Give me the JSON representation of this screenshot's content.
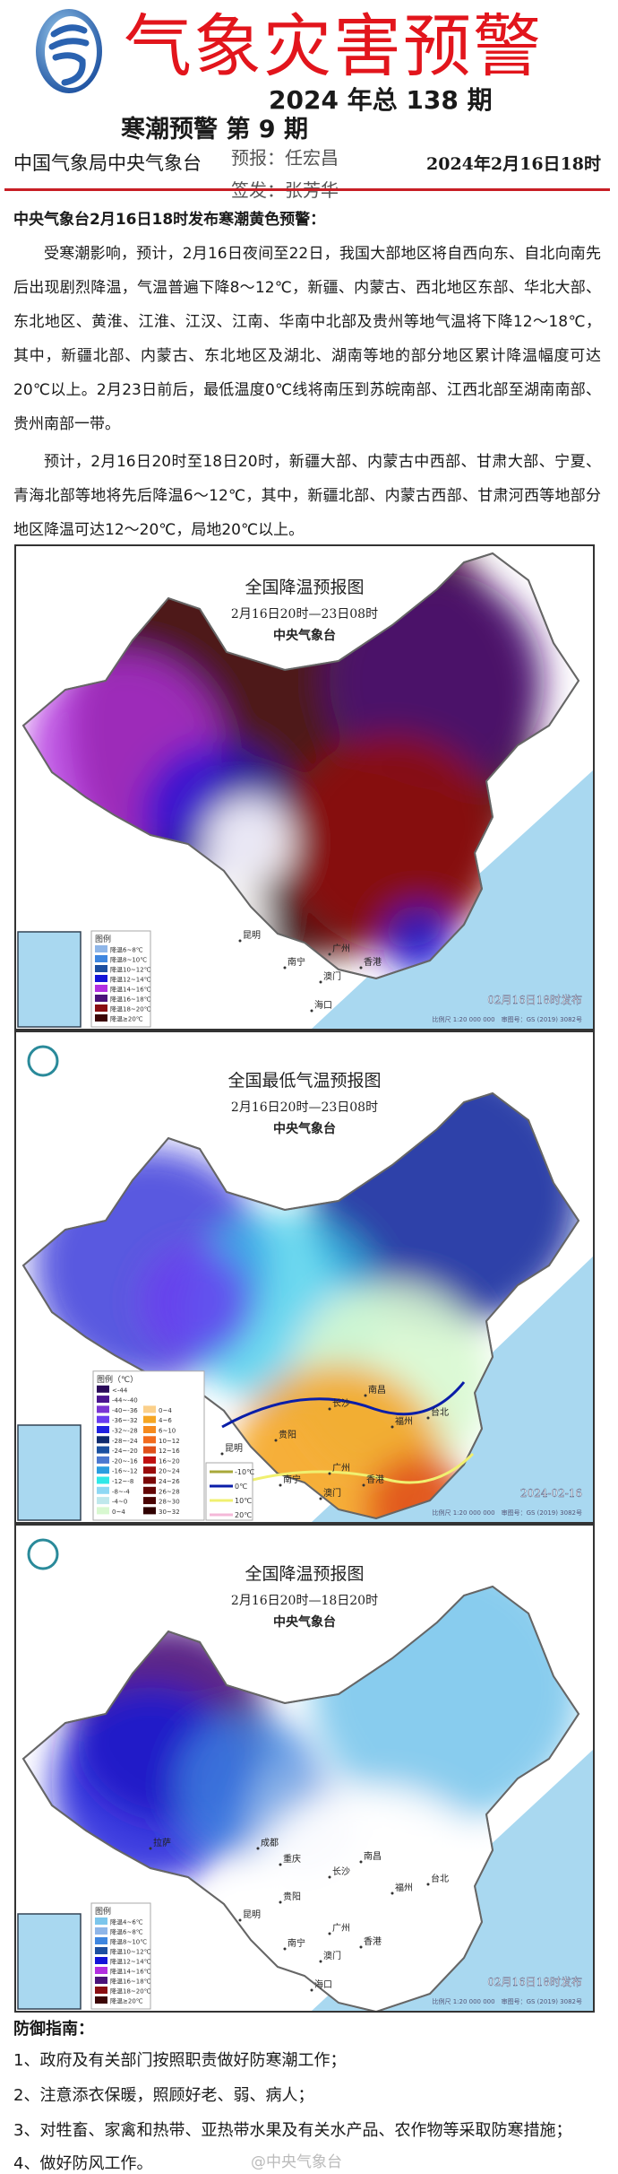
{
  "header": {
    "title": "气象灾害预警",
    "issue": "2024 年总 138 期",
    "sub_issue": "寒潮预警 第 9 期",
    "org": "中国气象局中央气象台",
    "forecaster": "预报：任宏昌",
    "issuer": "签发：张芳华",
    "date": "2024年2月16日18时",
    "accent": "#e2151c"
  },
  "body": {
    "heading": "中央气象台2月16日18时发布寒潮黄色预警：",
    "paragraphs": [
      "受寒潮影响，预计，2月16日夜间至22日，我国大部地区将自西向东、自北向南先后出现剧烈降温，气温普遍下降8～12℃，新疆、内蒙古、西北地区东部、华北大部、东北地区、黄淮、江淮、江汉、江南、华南中北部及贵州等地气温将下降12～18℃，其中，新疆北部、内蒙古、东北地区及湖北、湖南等地的部分地区累计降温幅度可达20℃以上。2月23日前后，最低温度0℃线将南压到苏皖南部、江西北部至湖南南部、贵州南部一带。",
      "预计，2月16日20时至18日20时，新疆大部、内蒙古中西部、甘肃大部、宁夏、青海北部等地将先后降温6～12℃，其中，新疆北部、内蒙古西部、甘肃河西等地部分地区降温可达12～20℃，局地20℃以上。"
    ]
  },
  "maps": [
    {
      "title": "全国降温预报图",
      "period": "2月16日20时—23日08时",
      "agency": "中央气象台",
      "legend_title": "图例",
      "legend": [
        {
          "label": "降温6~8℃",
          "color": "#8fb6e8"
        },
        {
          "label": "降温8~10℃",
          "color": "#3f86df"
        },
        {
          "label": "降温10~12℃",
          "color": "#1d4fa0"
        },
        {
          "label": "降温12~14℃",
          "color": "#1414d8"
        },
        {
          "label": "降温14~16℃",
          "color": "#b22fe0"
        },
        {
          "label": "降温16~18℃",
          "color": "#4b137a"
        },
        {
          "label": "降温18~20℃",
          "color": "#8a0f12"
        },
        {
          "label": "降温≥20℃",
          "color": "#3c0606"
        }
      ],
      "stamp": "02月16日18时发布",
      "scale": "比例尺 1:20 000 000　审图号：GS (2019) 3082号",
      "cities": [
        "昆明",
        "南宁",
        "广州",
        "香港",
        "澳门",
        "海口"
      ]
    },
    {
      "title": "全国最低气温预报图",
      "period": "2月16日20时—23日08时",
      "agency": "中央气象台",
      "legend_title": "图例（℃）",
      "legend": [
        {
          "label": "<-44",
          "color": "#2a0a5a"
        },
        {
          "label": "-44~-40",
          "color": "#4a1490"
        },
        {
          "label": "-40~-36",
          "color": "#7a34d4"
        },
        {
          "label": "-36~-32",
          "color": "#6a3cf0"
        },
        {
          "label": "-32~-28",
          "color": "#2020e0"
        },
        {
          "label": "-28~-24",
          "color": "#0e2a6e"
        },
        {
          "label": "-24~-20",
          "color": "#1a50a0"
        },
        {
          "label": "-20~-16",
          "color": "#4a78d0"
        },
        {
          "label": "-16~-12",
          "color": "#2a9ee0"
        },
        {
          "label": "-12~-8",
          "color": "#30e8e8"
        },
        {
          "label": "-8~-4",
          "color": "#8ed8f4"
        },
        {
          "label": "-4~0",
          "color": "#bfe8ec"
        },
        {
          "label": "0~4",
          "color": "#d8f8d0"
        }
      ],
      "legend_warm": [
        {
          "label": "0~4",
          "color": "#fbd08a"
        },
        {
          "label": "4~6",
          "color": "#f5a623"
        },
        {
          "label": "6~10",
          "color": "#f58a1e"
        },
        {
          "label": "10~12",
          "color": "#f26b1d"
        },
        {
          "label": "12~16",
          "color": "#e0501a"
        },
        {
          "label": "16~20",
          "color": "#c01010"
        },
        {
          "label": "20~24",
          "color": "#9a0c0c"
        },
        {
          "label": "24~26",
          "color": "#7a0808"
        },
        {
          "label": "26~28",
          "color": "#640606"
        },
        {
          "label": "28~30",
          "color": "#4a0404"
        },
        {
          "label": "30~32",
          "color": "#300202"
        }
      ],
      "isolines": [
        {
          "label": "-10℃",
          "color": "#a8a83a"
        },
        {
          "label": "0℃",
          "color": "#0a1ea8"
        },
        {
          "label": "10℃",
          "color": "#f0f070"
        },
        {
          "label": "20℃",
          "color": "#f4b8d8"
        }
      ],
      "stamp": "2024-02-16",
      "scale": "比例尺 1:20 000 000　审图号：GS (2019) 3082号",
      "cities": [
        "昆明",
        "贵阳",
        "长沙",
        "南昌",
        "福州",
        "台北",
        "南宁",
        "广州",
        "香港",
        "澳门"
      ]
    },
    {
      "title": "全国降温预报图",
      "period": "2月16日20时—18日20时",
      "agency": "中央气象台",
      "legend_title": "图例",
      "legend": [
        {
          "label": "降温4~6℃",
          "color": "#7cc6ec"
        },
        {
          "label": "降温6~8℃",
          "color": "#8fb6e8"
        },
        {
          "label": "降温8~10℃",
          "color": "#3f86df"
        },
        {
          "label": "降温10~12℃",
          "color": "#1d4fa0"
        },
        {
          "label": "降温12~14℃",
          "color": "#1414d8"
        },
        {
          "label": "降温14~16℃",
          "color": "#b22fe0"
        },
        {
          "label": "降温16~18℃",
          "color": "#4b137a"
        },
        {
          "label": "降温18~20℃",
          "color": "#8a0f12"
        },
        {
          "label": "降温≥20℃",
          "color": "#3c0606"
        }
      ],
      "stamp": "02月16日18时发布",
      "scale": "比例尺 1:20 000 000　审图号：GS (2019) 3082号",
      "cities": [
        "拉萨",
        "成都",
        "重庆",
        "长沙",
        "南昌",
        "贵阳",
        "昆明",
        "福州",
        "台北",
        "南宁",
        "广州",
        "香港",
        "澳门",
        "海口"
      ]
    }
  ],
  "guide": {
    "heading": "防御指南：",
    "items": [
      "1、政府及有关部门按照职责做好防寒潮工作；",
      "2、注意添衣保暖，照顾好老、弱、病人；",
      "3、对牲畜、家禽和热带、亚热带水果及有关水产品、农作物等采取防寒措施；",
      "4、做好防风工作。"
    ]
  },
  "watermark": "@中央气象台"
}
